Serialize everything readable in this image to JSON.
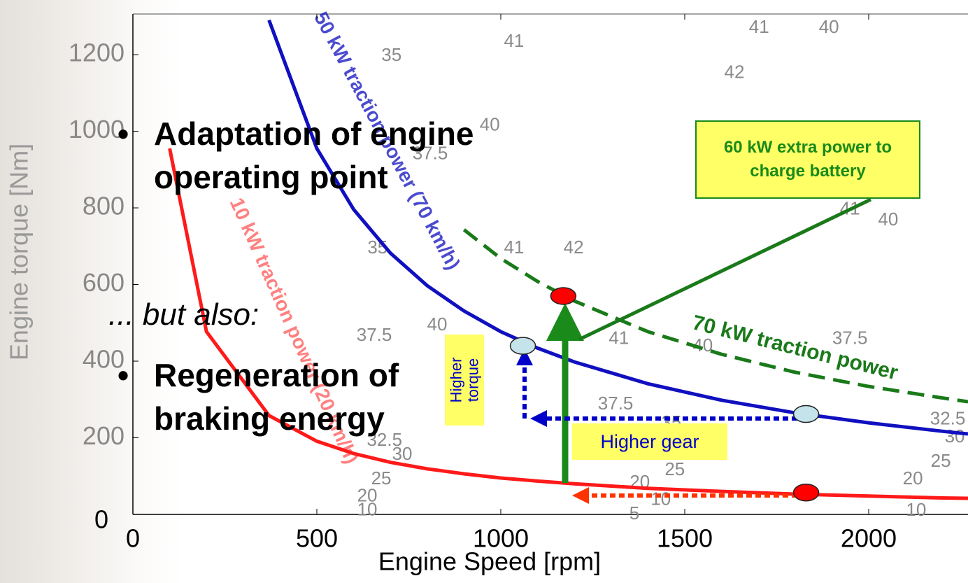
{
  "chart_data": {
    "type": "line",
    "x_label": "Engine Speed [rpm]",
    "y_label": "Engine torque [Nm]",
    "xlim": [
      0,
      2270
    ],
    "ylim": [
      0,
      1306
    ],
    "xticks": [
      0,
      500,
      1000,
      1500,
      2000
    ],
    "yticks": [
      0,
      200,
      400,
      600,
      800,
      1000,
      1200
    ],
    "x": [
      100,
      200,
      370,
      500,
      600,
      700,
      800,
      900,
      1000,
      1100,
      1200,
      1400,
      1600,
      1800,
      2000,
      2200,
      2270
    ],
    "series": [
      {
        "name": "50 kW traction power (70 km/h)",
        "color": "#1010c0",
        "dashed": false,
        "values": [
          null,
          null,
          1290,
          955,
          796,
          682,
          597,
          531,
          477,
          434,
          398,
          341,
          298,
          265,
          239,
          217,
          210
        ]
      },
      {
        "name": "70 kW traction power",
        "color": "#1a7a1a",
        "dashed": true,
        "values": [
          null,
          null,
          null,
          null,
          null,
          null,
          null,
          743,
          668,
          608,
          557,
          477,
          418,
          371,
          334,
          304,
          294
        ]
      },
      {
        "name": "10 kW traction power (20 km/h)",
        "color": "#ff1a1a",
        "dashed": false,
        "values": [
          955,
          477,
          258,
          191,
          159,
          136,
          119,
          106,
          95,
          87,
          80,
          68,
          60,
          53,
          48,
          43,
          42
        ]
      }
    ],
    "operating_points": {
      "x": [
        1060,
        1830,
        1170,
        1830
      ],
      "y": [
        440,
        262,
        570,
        57
      ],
      "colors": [
        "#c5e3ea",
        "#c5e3ea",
        "#ff0000",
        "#ff0000"
      ]
    },
    "contour_labels": [
      {
        "text": "35",
        "x": 703,
        "y": 1196
      },
      {
        "text": "41",
        "x": 1036,
        "y": 1233
      },
      {
        "text": "41",
        "x": 1702,
        "y": 1269
      },
      {
        "text": "40",
        "x": 1892,
        "y": 1269
      },
      {
        "text": "42",
        "x": 1635,
        "y": 1151
      },
      {
        "text": "40",
        "x": 970,
        "y": 1014
      },
      {
        "text": "37.5",
        "x": 808,
        "y": 940
      },
      {
        "text": "35",
        "x": 665,
        "y": 694
      },
      {
        "text": "41",
        "x": 1036,
        "y": 694
      },
      {
        "text": "42",
        "x": 1198,
        "y": 694
      },
      {
        "text": "41",
        "x": 1949,
        "y": 795
      },
      {
        "text": "40",
        "x": 2053,
        "y": 767
      },
      {
        "text": "37.5",
        "x": 656,
        "y": 466
      },
      {
        "text": "40",
        "x": 827,
        "y": 493
      },
      {
        "text": "41",
        "x": 1321,
        "y": 457
      },
      {
        "text": "40",
        "x": 1549,
        "y": 438
      },
      {
        "text": "37.5",
        "x": 1949,
        "y": 457
      },
      {
        "text": "37.5",
        "x": 1312,
        "y": 287
      },
      {
        "text": "35",
        "x": 1464,
        "y": 237
      },
      {
        "text": "32.5",
        "x": 684,
        "y": 192
      },
      {
        "text": "30",
        "x": 732,
        "y": 155
      },
      {
        "text": "25",
        "x": 675,
        "y": 91
      },
      {
        "text": "25",
        "x": 1473,
        "y": 115
      },
      {
        "text": "20",
        "x": 1378,
        "y": 82
      },
      {
        "text": "10",
        "x": 1435,
        "y": 37
      },
      {
        "text": "5",
        "x": 1363,
        "y": 0
      },
      {
        "text": "20",
        "x": 637,
        "y": 46
      },
      {
        "text": "10",
        "x": 637,
        "y": 10
      },
      {
        "text": "32.5",
        "x": 2215,
        "y": 247
      },
      {
        "text": "30",
        "x": 2234,
        "y": 201
      },
      {
        "text": "25",
        "x": 2196,
        "y": 137
      },
      {
        "text": "20",
        "x": 2120,
        "y": 91
      },
      {
        "text": "10",
        "x": 2129,
        "y": 9
      }
    ],
    "callouts": [
      "60 kW extra power to charge battery",
      "Higher torque",
      "Higher gear"
    ]
  },
  "bullets": [
    "Adaptation of engine operating point",
    "... but also:",
    "Regeneration of braking energy"
  ]
}
